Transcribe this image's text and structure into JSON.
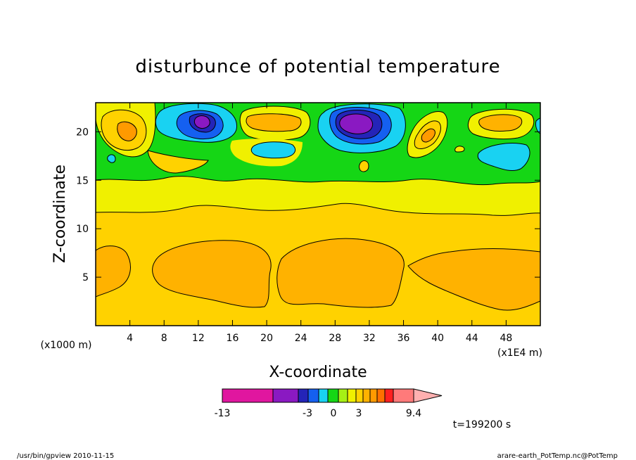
{
  "chart_data": {
    "type": "heatmap",
    "title": "disturbunce of potential temperature",
    "xlabel": "X-coordinate",
    "ylabel": "Z-coordinate",
    "x_unit": "(x1E4 m)",
    "y_unit": "(x1000 m)",
    "xlim": [
      0,
      52
    ],
    "ylim": [
      0,
      23
    ],
    "xticks": [
      4,
      8,
      12,
      16,
      20,
      24,
      28,
      32,
      36,
      40,
      44,
      48
    ],
    "yticks": [
      5,
      10,
      15,
      20
    ],
    "colorbar": {
      "levels": [
        -13,
        -6,
        -4,
        -3,
        -2,
        -1,
        0,
        1,
        2,
        3,
        4,
        5,
        6,
        7,
        9.4,
        11
      ],
      "colors": [
        "#e0169f",
        "#8a19c2",
        "#2424b8",
        "#1560f0",
        "#19d2f2",
        "#15d615",
        "#a6f015",
        "#f0f000",
        "#ffd200",
        "#ffb200",
        "#ff9a00",
        "#ff7000",
        "#ff2020",
        "#ff7a7a",
        "#ffb0b0"
      ],
      "tick_labels": [
        "-13",
        "-3",
        "0",
        "3",
        "9.4"
      ],
      "tick_values": [
        -13,
        -3,
        0,
        3,
        9.4
      ]
    },
    "bands": [
      {
        "z_top": 8.5,
        "value": 4.5,
        "note": "orange lower band"
      },
      {
        "z_top": 11.7,
        "value": 3.5,
        "note": "light orange band"
      },
      {
        "z_top": 15.0,
        "value": 2.5,
        "note": "yellow band"
      },
      {
        "z_top": 23.0,
        "value": 0.5,
        "note": "green upper region"
      }
    ],
    "features": [
      {
        "x": 4.0,
        "z": 20.0,
        "value": 5.5
      },
      {
        "x": 12.0,
        "z": 21.0,
        "value": -5.5
      },
      {
        "x": 20.0,
        "z": 21.0,
        "value": 4.5
      },
      {
        "x": 21.0,
        "z": 18.0,
        "value": -1.5
      },
      {
        "x": 30.0,
        "z": 21.0,
        "value": -6.5
      },
      {
        "x": 39.0,
        "z": 20.0,
        "value": 4.5
      },
      {
        "x": 45.0,
        "z": 20.5,
        "value": 4.5
      },
      {
        "x": 47.0,
        "z": 17.0,
        "value": -1.5
      }
    ],
    "time_label": "t=199200 s"
  },
  "footer": {
    "left": "/usr/bin/gpview  2010-11-15",
    "right": "arare-earth_PotTemp.nc@PotTemp"
  }
}
